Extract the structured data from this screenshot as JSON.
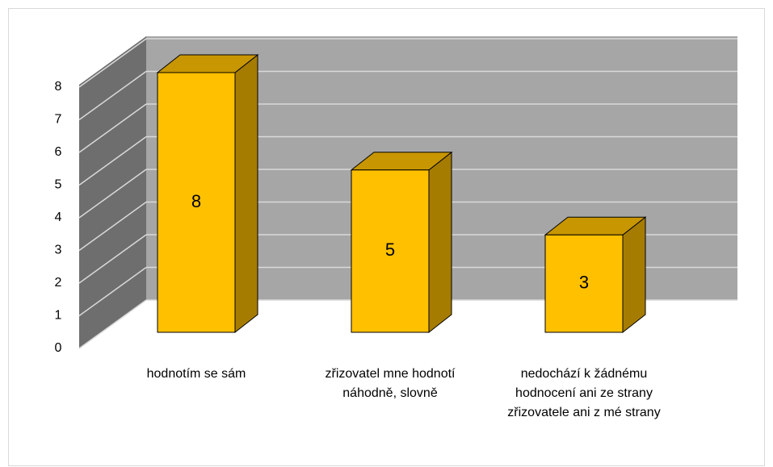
{
  "chart_data": {
    "type": "bar3d",
    "categories": [
      "hodnotím se sám",
      "zřizovatel mne hodnotí náhodně, slovně",
      "nedochází k žádnému hodnocení ani ze strany zřizovatele ani z mé strany"
    ],
    "values": [
      8,
      5,
      3
    ],
    "color": "#ffc000",
    "ylim": [
      0,
      8
    ],
    "yticks": [
      0,
      1,
      2,
      3,
      4,
      5,
      6,
      7,
      8
    ],
    "grid": true
  }
}
